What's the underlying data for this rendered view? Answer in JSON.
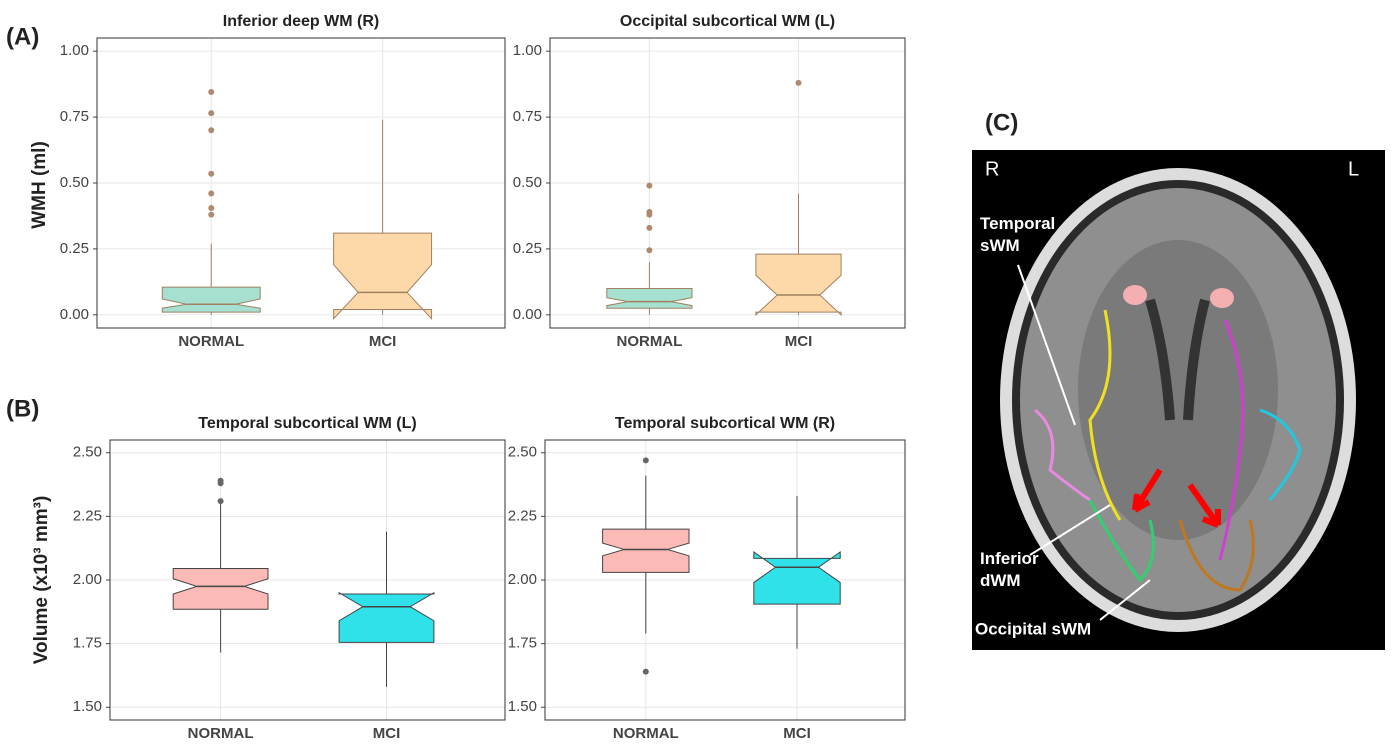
{
  "panel_labels": [
    "(A)",
    "(B)",
    "(C)"
  ],
  "chart_data": [
    {
      "type": "box",
      "title": "Inferior deep WM (R)",
      "ylabel": "WMH (ml)",
      "categories": [
        "NORMAL",
        "MCI"
      ],
      "colors": [
        "#a6e0d1",
        "#fdd9a9"
      ],
      "outlier_color": "#b08a70",
      "ylim": [
        -0.05,
        1.05
      ],
      "yticks": [
        {
          "value": 0,
          "label": "0.00"
        },
        {
          "value": 0.25,
          "label": "0.25"
        },
        {
          "value": 0.5,
          "label": "0.50"
        },
        {
          "value": 0.75,
          "label": "0.75"
        },
        {
          "value": 1,
          "label": "1.00"
        }
      ],
      "boxes": [
        {
          "whisker_low": 0,
          "q1": 0.01,
          "notch_low": 0.025,
          "median": 0.04,
          "notch_high": 0.06,
          "q3": 0.105,
          "whisker_high": 0.27,
          "outliers": [
            0.845,
            0.765,
            0.7,
            0.535,
            0.46,
            0.405,
            0.38
          ]
        },
        {
          "whisker_low": 0,
          "q1": 0.02,
          "notch_low": -0.015,
          "median": 0.085,
          "notch_high": 0.19,
          "q3": 0.31,
          "whisker_high": 0.74,
          "outliers": []
        }
      ]
    },
    {
      "type": "box",
      "title": "Occipital subcortical WM (L)",
      "categories": [
        "NORMAL",
        "MCI"
      ],
      "colors": [
        "#a6e0d1",
        "#fdd9a9"
      ],
      "outlier_color": "#b08a70",
      "ylim": [
        -0.05,
        1.05
      ],
      "yticks": [
        {
          "value": 0,
          "label": "0.00"
        },
        {
          "value": 0.25,
          "label": "0.25"
        },
        {
          "value": 0.5,
          "label": "0.50"
        },
        {
          "value": 0.75,
          "label": "0.75"
        },
        {
          "value": 1,
          "label": "1.00"
        }
      ],
      "boxes": [
        {
          "whisker_low": 0,
          "q1": 0.025,
          "notch_low": 0.035,
          "median": 0.05,
          "notch_high": 0.065,
          "q3": 0.1,
          "whisker_high": 0.2,
          "outliers": [
            0.49,
            0.39,
            0.38,
            0.33,
            0.245
          ]
        },
        {
          "whisker_low": 0,
          "q1": 0.01,
          "notch_low": 0.0,
          "median": 0.075,
          "notch_high": 0.15,
          "q3": 0.23,
          "whisker_high": 0.46,
          "outliers": [
            0.88
          ]
        }
      ]
    },
    {
      "type": "box",
      "title": "Temporal subcortical WM (L)",
      "ylabel": "Volume (x10³ mm³)",
      "categories": [
        "NORMAL",
        "MCI"
      ],
      "colors": [
        "#fbbab5",
        "#2fe1e9"
      ],
      "outlier_color": "#666666",
      "ylim": [
        1.45,
        2.55
      ],
      "yticks": [
        {
          "value": 1.5,
          "label": "1.50"
        },
        1.75,
        {
          "value": 2,
          "label": "2.00"
        },
        2.25,
        {
          "value": 2.5,
          "label": "2.50"
        }
      ],
      "boxes": [
        {
          "whisker_low": 1.715,
          "q1": 1.885,
          "notch_low": 1.945,
          "median": 1.975,
          "notch_high": 2.005,
          "q3": 2.045,
          "whisker_high": 2.3,
          "outliers": [
            2.39,
            2.38,
            2.31
          ]
        },
        {
          "whisker_low": 1.58,
          "q1": 1.755,
          "notch_low": 1.84,
          "median": 1.895,
          "notch_high": 1.95,
          "q3": 1.945,
          "whisker_high": 2.19,
          "outliers": []
        }
      ]
    },
    {
      "type": "box",
      "title": "Temporal subcortical WM (R)",
      "categories": [
        "NORMAL",
        "MCI"
      ],
      "colors": [
        "#fbbab5",
        "#2fe1e9"
      ],
      "outlier_color": "#666666",
      "ylim": [
        1.45,
        2.55
      ],
      "yticks": [
        {
          "value": 1.5,
          "label": "1.50"
        },
        1.75,
        {
          "value": 2,
          "label": "2.00"
        },
        2.25,
        {
          "value": 2.5,
          "label": "2.50"
        }
      ],
      "boxes": [
        {
          "whisker_low": 1.79,
          "q1": 2.03,
          "notch_low": 2.095,
          "median": 2.12,
          "notch_high": 2.145,
          "q3": 2.2,
          "whisker_high": 2.41,
          "outliers": [
            2.47,
            1.64
          ]
        },
        {
          "whisker_low": 1.73,
          "q1": 1.905,
          "notch_low": 1.99,
          "median": 2.05,
          "notch_high": 2.11,
          "q3": 2.085,
          "whisker_high": 2.33,
          "outliers": []
        }
      ]
    }
  ],
  "image": {
    "side_labels": [
      "R",
      "L"
    ],
    "region_labels": [
      "Temporal sWM",
      "Inferior dWM",
      "Occipital sWM"
    ]
  }
}
